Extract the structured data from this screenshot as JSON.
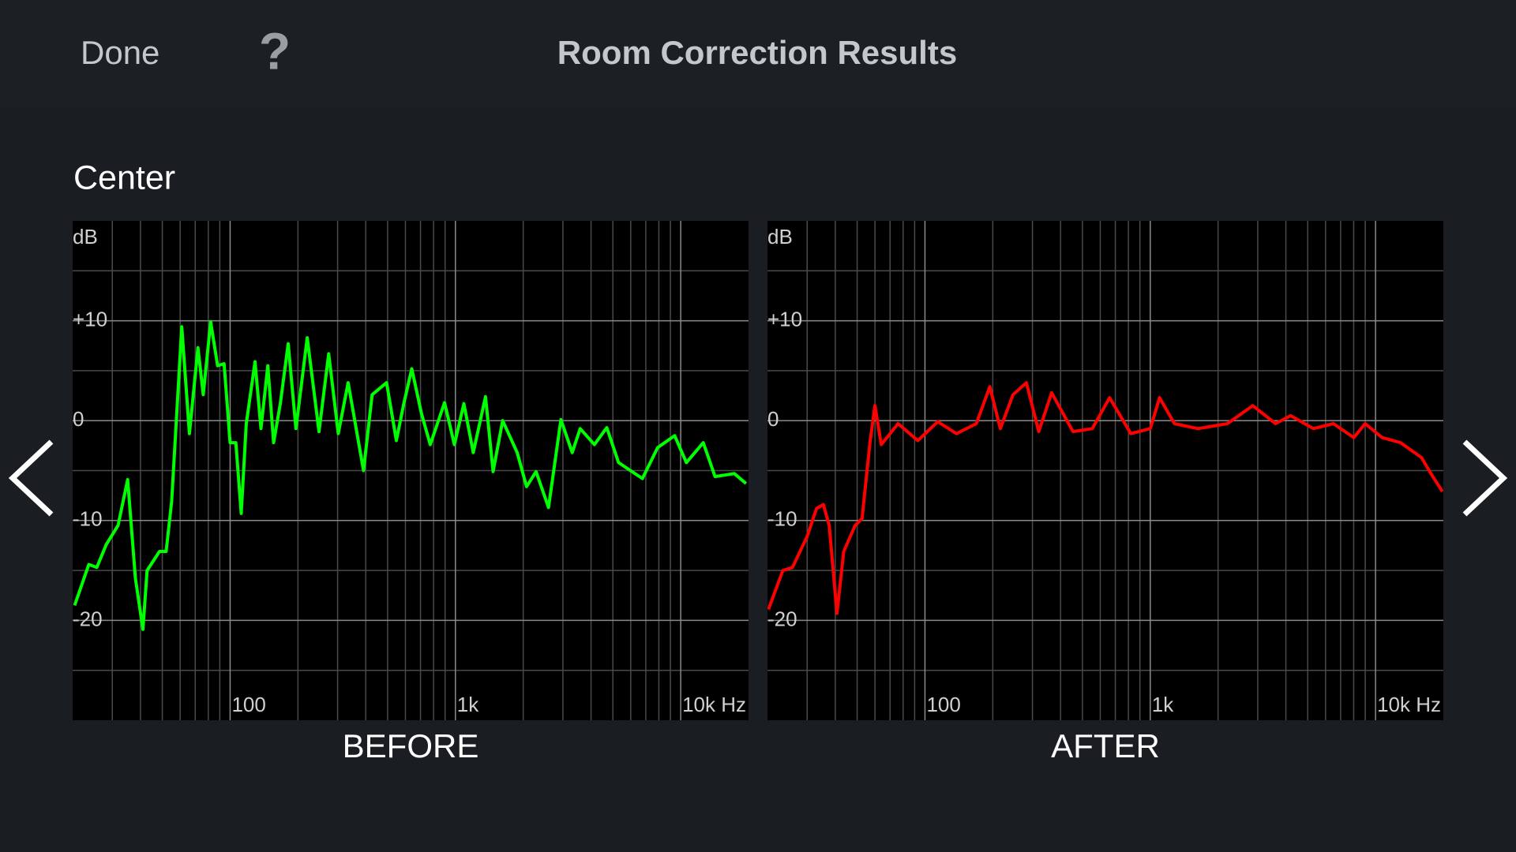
{
  "header": {
    "done": "Done",
    "help": "?",
    "title": "Room Correction Results"
  },
  "section": "Center",
  "chart_data": [
    {
      "type": "line",
      "title": "BEFORE",
      "y_label": "dB",
      "color": "#00ff00",
      "log_x": true,
      "grid": true,
      "xlim": [
        20,
        20000
      ],
      "ylim": [
        -30,
        20
      ],
      "xticks": [
        {
          "value": 100,
          "label": "100"
        },
        {
          "value": 1000,
          "label": "1k"
        },
        {
          "value": 10000,
          "label": "10k Hz"
        }
      ],
      "yticks": [
        {
          "value": 10,
          "label": "+10"
        },
        0,
        -10,
        -20
      ],
      "minor_xticks": [
        30,
        40,
        50,
        60,
        70,
        80,
        90,
        200,
        300,
        400,
        500,
        600,
        700,
        800,
        900,
        2000,
        3000,
        4000,
        5000,
        6000,
        7000,
        8000,
        9000
      ],
      "minor_yticks": [
        15,
        5,
        -5,
        -15,
        -25
      ],
      "x": [
        20.4,
        23.6,
        25.6,
        28.2,
        31.8,
        35.1,
        38,
        41,
        42.8,
        48.6,
        52,
        55,
        61,
        66,
        72,
        76,
        82,
        88,
        94,
        100,
        106,
        112,
        118,
        129,
        137,
        147,
        156,
        167,
        181,
        196,
        220,
        248,
        274,
        302,
        334,
        391,
        427,
        495,
        547,
        590,
        640,
        707,
        773,
        895,
        990,
        1090,
        1200,
        1360,
        1470,
        1620,
        1880,
        2070,
        2280,
        2590,
        2940,
        3300,
        3580,
        4140,
        4700,
        5300,
        6760,
        7900,
        9400,
        10600,
        12600,
        14200,
        17300,
        19500
      ],
      "values": [
        -18.5,
        -14.4,
        -14.7,
        -12.4,
        -10.5,
        -5.9,
        -15.8,
        -20.9,
        -15,
        -13.1,
        -13.1,
        -8.1,
        9.4,
        -1.3,
        7.3,
        2.6,
        9.9,
        5.5,
        5.7,
        -2.2,
        -2.2,
        -9.3,
        -0.3,
        5.9,
        -0.8,
        5.5,
        -2.2,
        1.7,
        7.7,
        -0.8,
        8.3,
        -1.1,
        6.7,
        -1.3,
        3.8,
        -5,
        2.6,
        3.8,
        -2,
        1.7,
        5.2,
        0.7,
        -2.4,
        1.8,
        -2.4,
        1.7,
        -3.2,
        2.4,
        -5.1,
        0,
        -3.2,
        -6.6,
        -5.1,
        -8.7,
        0.1,
        -3.2,
        -0.8,
        -2.4,
        -0.7,
        -4.2,
        -5.8,
        -2.7,
        -1.5,
        -4.2,
        -2.2,
        -5.6,
        -5.3,
        -6.3
      ]
    },
    {
      "type": "line",
      "title": "AFTER",
      "y_label": "dB",
      "color": "#ff0000",
      "log_x": true,
      "grid": true,
      "xlim": [
        20,
        20000
      ],
      "ylim": [
        -30,
        20
      ],
      "xticks": [
        {
          "value": 100,
          "label": "100"
        },
        {
          "value": 1000,
          "label": "1k"
        },
        {
          "value": 10000,
          "label": "10k Hz"
        }
      ],
      "yticks": [
        {
          "value": 10,
          "label": "+10"
        },
        0,
        -10,
        -20
      ],
      "minor_xticks": [
        30,
        40,
        50,
        60,
        70,
        80,
        90,
        200,
        300,
        400,
        500,
        600,
        700,
        800,
        900,
        2000,
        3000,
        4000,
        5000,
        6000,
        7000,
        8000,
        9000
      ],
      "minor_yticks": [
        15,
        5,
        -5,
        -15,
        -25
      ],
      "x": [
        20.2,
        23.4,
        25.8,
        30,
        33,
        35.4,
        37.6,
        40.7,
        43.6,
        49,
        52.6,
        57,
        60,
        64,
        76,
        93,
        114,
        138,
        169,
        194,
        216,
        246,
        282,
        320,
        365,
        454,
        553,
        660,
        820,
        1000,
        1100,
        1280,
        1630,
        2200,
        2850,
        3600,
        4200,
        5300,
        6500,
        8000,
        9000,
        10700,
        12900,
        16000,
        17600,
        19800
      ],
      "values": [
        -18.9,
        -15,
        -14.7,
        -11.6,
        -8.8,
        -8.4,
        -10.5,
        -19.3,
        -13.1,
        -10.5,
        -9.8,
        -2.2,
        1.5,
        -2.4,
        -0.3,
        -2,
        -0.1,
        -1.3,
        -0.3,
        3.4,
        -0.8,
        2.6,
        3.8,
        -1.1,
        2.8,
        -1.1,
        -0.8,
        2.3,
        -1.3,
        -0.8,
        2.3,
        -0.3,
        -0.8,
        -0.3,
        1.5,
        -0.3,
        0.5,
        -0.8,
        -0.3,
        -1.7,
        -0.3,
        -1.7,
        -2.2,
        -3.7,
        -5.3,
        -7.1
      ]
    }
  ]
}
